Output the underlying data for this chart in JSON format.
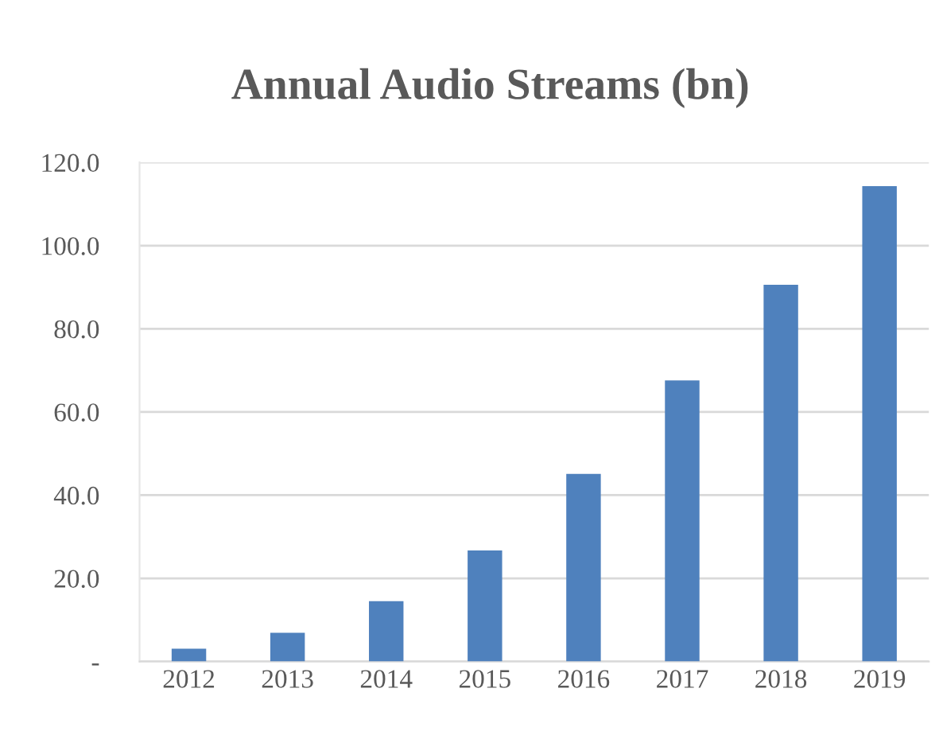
{
  "chart_data": {
    "type": "bar",
    "title": "Annual Audio Streams (bn)",
    "categories": [
      "2012",
      "2013",
      "2014",
      "2015",
      "2016",
      "2017",
      "2018",
      "2019"
    ],
    "values": [
      3.1,
      6.9,
      14.5,
      26.7,
      45.1,
      67.6,
      90.6,
      114.3
    ],
    "color": "#4f81bd",
    "ylim": [
      0,
      120
    ],
    "yticks": [
      {
        "value": 0,
        "label": "-"
      },
      {
        "value": 20,
        "label": "20.0"
      },
      {
        "value": 40,
        "label": "40.0"
      },
      {
        "value": 60,
        "label": "60.0"
      },
      {
        "value": 80,
        "label": "80.0"
      },
      {
        "value": 100,
        "label": "100.0"
      },
      {
        "value": 120,
        "label": "120.0"
      }
    ],
    "grid": "y"
  }
}
